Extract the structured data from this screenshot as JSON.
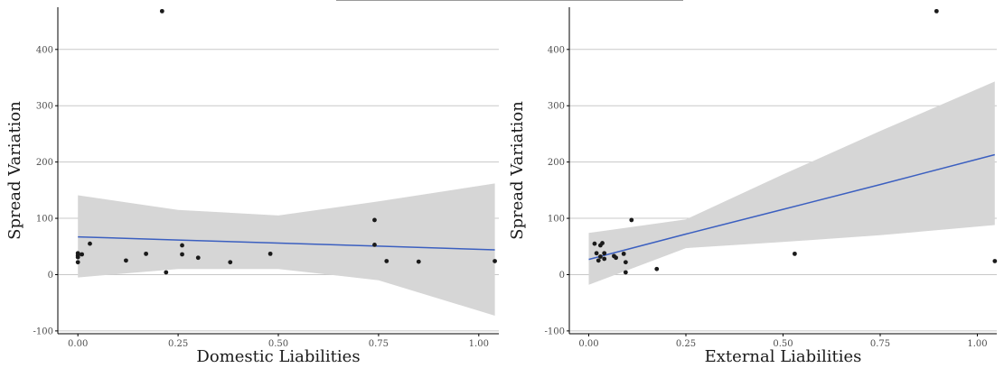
{
  "colors": {
    "background": "#ffffff",
    "grid": "#c8c8c8",
    "axis": "#000000",
    "ribbon": "#d6d6d6",
    "fit_line": "#3b5fc0",
    "points": "#1a1a1a"
  },
  "chart_data": [
    {
      "type": "scatter",
      "title": "",
      "xlabel": "Domestic Liabilities",
      "ylabel": "Spread Variation",
      "xlim": [
        -0.05,
        1.05
      ],
      "ylim": [
        -105,
        475
      ],
      "x_ticks": [
        0.0,
        0.25,
        0.5,
        0.75,
        1.0
      ],
      "x_tick_labels": [
        "0.00",
        "0.25",
        "0.50",
        "0.75",
        "1.00"
      ],
      "y_ticks": [
        -100,
        0,
        100,
        200,
        300,
        400
      ],
      "y_tick_labels": [
        "-100",
        "0",
        "100",
        "200",
        "300",
        "400"
      ],
      "grid": "horizontal",
      "points": [
        {
          "x": 0.0,
          "y": 38
        },
        {
          "x": 0.0,
          "y": 34
        },
        {
          "x": 0.0,
          "y": 31
        },
        {
          "x": 0.0,
          "y": 22
        },
        {
          "x": 0.01,
          "y": 36
        },
        {
          "x": 0.03,
          "y": 55
        },
        {
          "x": 0.12,
          "y": 25
        },
        {
          "x": 0.17,
          "y": 37
        },
        {
          "x": 0.21,
          "y": 468
        },
        {
          "x": 0.22,
          "y": 4
        },
        {
          "x": 0.26,
          "y": 52
        },
        {
          "x": 0.26,
          "y": 36
        },
        {
          "x": 0.3,
          "y": 30
        },
        {
          "x": 0.38,
          "y": 22
        },
        {
          "x": 0.48,
          "y": 37
        },
        {
          "x": 0.74,
          "y": 97
        },
        {
          "x": 0.74,
          "y": 53
        },
        {
          "x": 0.77,
          "y": 24
        },
        {
          "x": 0.85,
          "y": 23
        },
        {
          "x": 1.04,
          "y": 24
        }
      ],
      "fit": {
        "x": [
          0.0,
          0.25,
          0.5,
          0.75,
          1.04
        ],
        "y": [
          67,
          61.5,
          56,
          50.5,
          44
        ],
        "ci_lower": [
          -5,
          10,
          10,
          -10,
          -73
        ],
        "ci_upper": [
          141,
          115,
          105,
          130,
          162
        ]
      }
    },
    {
      "type": "scatter",
      "title": "",
      "xlabel": "External Liabilities",
      "ylabel": "Spread Variation",
      "xlim": [
        -0.05,
        1.05
      ],
      "ylim": [
        -105,
        475
      ],
      "x_ticks": [
        0.0,
        0.25,
        0.5,
        0.75,
        1.0
      ],
      "x_tick_labels": [
        "0.00",
        "0.25",
        "0.50",
        "0.75",
        "1.00"
      ],
      "y_ticks": [
        -100,
        0,
        100,
        200,
        300,
        400
      ],
      "y_tick_labels": [
        "-100",
        "0",
        "100",
        "200",
        "300",
        "400"
      ],
      "grid": "horizontal",
      "points": [
        {
          "x": 0.015,
          "y": 55
        },
        {
          "x": 0.02,
          "y": 38
        },
        {
          "x": 0.025,
          "y": 25
        },
        {
          "x": 0.03,
          "y": 52
        },
        {
          "x": 0.03,
          "y": 32
        },
        {
          "x": 0.035,
          "y": 56
        },
        {
          "x": 0.04,
          "y": 38
        },
        {
          "x": 0.04,
          "y": 28
        },
        {
          "x": 0.065,
          "y": 33
        },
        {
          "x": 0.07,
          "y": 30
        },
        {
          "x": 0.09,
          "y": 37
        },
        {
          "x": 0.095,
          "y": 22
        },
        {
          "x": 0.095,
          "y": 4
        },
        {
          "x": 0.11,
          "y": 97
        },
        {
          "x": 0.175,
          "y": 10
        },
        {
          "x": 0.53,
          "y": 37
        },
        {
          "x": 0.895,
          "y": 468
        },
        {
          "x": 1.045,
          "y": 24
        }
      ],
      "fit": {
        "x": [
          0.0,
          0.25,
          0.5,
          0.75,
          1.045
        ],
        "y": [
          27,
          72,
          116,
          160,
          213
        ],
        "ci_lower": [
          -18,
          47,
          58,
          70,
          88
        ],
        "ci_upper": [
          74,
          98,
          178,
          255,
          343
        ]
      }
    }
  ]
}
